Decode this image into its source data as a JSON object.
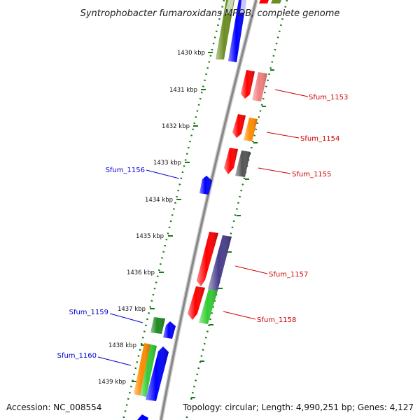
{
  "title": "Syntrophobacter fumaroxidans MPOB, complete genome",
  "accession_text": "Accession: NC_008554",
  "summary_text": "Topology: circular; Length: 4,990,251 bp; Genes: 4,127",
  "kbp_ticks": [
    "1430 kbp",
    "1431 kbp",
    "1432 kbp",
    "1433 kbp",
    "1434 kbp",
    "1435 kbp",
    "1436 kbp",
    "1437 kbp",
    "1438 kbp",
    "1439 kbp"
  ],
  "gene_labels": [
    {
      "text": "Sfum_1153",
      "color": "#cc0000"
    },
    {
      "text": "Sfum_1154",
      "color": "#cc0000"
    },
    {
      "text": "Sfum_1155",
      "color": "#cc0000"
    },
    {
      "text": "Sfum_1156",
      "color": "#0000cc"
    },
    {
      "text": "Sfum_1157",
      "color": "#cc0000"
    },
    {
      "text": "Sfum_1158",
      "color": "#cc0000"
    },
    {
      "text": "Sfum_1159",
      "color": "#0000cc"
    },
    {
      "text": "Sfum_1160",
      "color": "#0000cc"
    }
  ],
  "colors": {
    "backbone": "#909090",
    "ruler_dots": "#1a7a1a",
    "gene_red": "#ff0000",
    "gene_blue": "#0000ff",
    "gene_green": "#33cc33",
    "gene_orange": "#ff8c00",
    "gene_olive": "#6b8e23",
    "gene_gray": "#555555",
    "gene_pink": "#f08080",
    "gene_purple": "#483d8b"
  }
}
